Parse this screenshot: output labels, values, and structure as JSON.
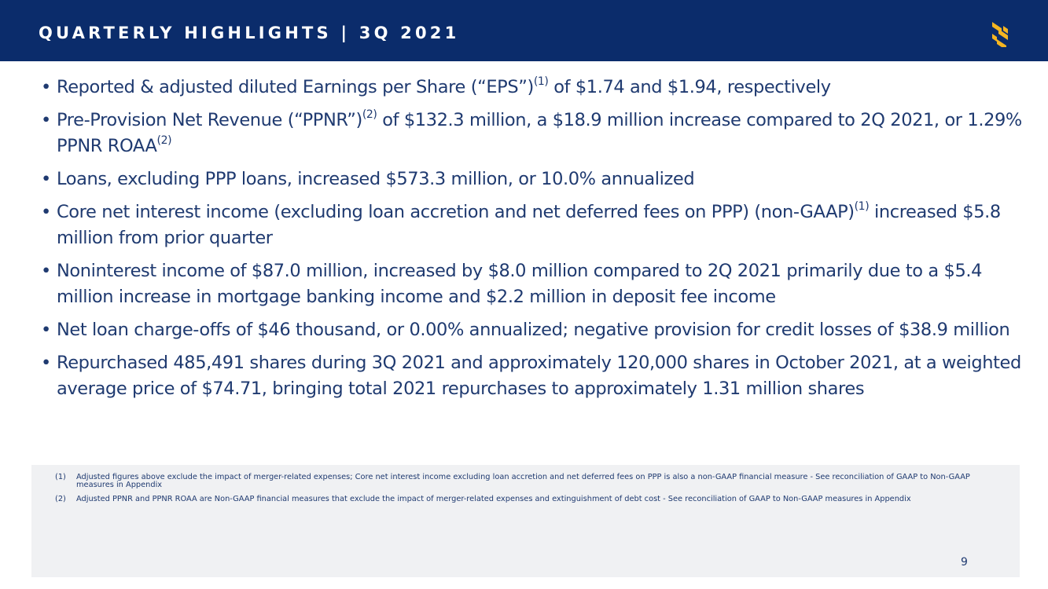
{
  "header": {
    "title": "QUARTERLY HIGHLIGHTS | 3Q 2021",
    "logo_icon": "s-logo-icon",
    "background_color": "#0b2c6b",
    "logo_color": "#f5b521"
  },
  "bullets": [
    {
      "marker": "•",
      "parts": [
        {
          "text": "Reported & adjusted diluted Earnings per Share (“EPS”)"
        },
        {
          "sup": "(1)"
        },
        {
          "text": " of $1.74 and $1.94, respectively"
        }
      ]
    },
    {
      "marker": "•",
      "parts": [
        {
          "text": "Pre-Provision Net Revenue (“PPNR”)"
        },
        {
          "sup": "(2)"
        },
        {
          "text": " of $132.3 million, a $18.9 million increase compared to 2Q 2021, or 1.29% PPNR ROAA"
        },
        {
          "sup": "(2)"
        }
      ]
    },
    {
      "marker": "•",
      "parts": [
        {
          "text": "Loans, excluding PPP loans, increased $573.3 million, or 10.0% annualized"
        }
      ]
    },
    {
      "marker": "•",
      "parts": [
        {
          "text": "Core net interest income (excluding loan accretion and net deferred fees on PPP) (non-GAAP)"
        },
        {
          "sup": "(1)"
        },
        {
          "text": " increased $5.8 million from prior quarter"
        }
      ]
    },
    {
      "marker": "•",
      "parts": [
        {
          "text": "Noninterest income of $87.0 million, increased by $8.0 million compared to 2Q 2021 primarily due to a $5.4 million increase in mortgage banking income and $2.2 million in deposit fee income"
        }
      ]
    },
    {
      "marker": "•",
      "parts": [
        {
          "text": "Net loan charge-offs of $46 thousand, or 0.00% annualized; negative provision for credit losses of $38.9 million"
        }
      ]
    },
    {
      "marker": "•",
      "parts": [
        {
          "text": "Repurchased 485,491 shares during 3Q 2021 and approximately 120,000 shares in October 2021, at a weighted average price of $74.71, bringing total 2021 repurchases to approximately 1.31 million shares"
        }
      ]
    }
  ],
  "footnotes": [
    {
      "number": "(1)",
      "text": "Adjusted figures above exclude the impact of merger-related expenses; Core net interest income excluding loan accretion and net deferred fees on PPP is also a non-GAAP financial measure - See reconciliation of GAAP to Non-GAAP measures in Appendix"
    },
    {
      "number": "(2)",
      "text": "Adjusted PPNR and PPNR ROAA are Non-GAAP financial measures that exclude the impact of merger-related expenses and extinguishment of debt cost - See reconciliation of GAAP to Non-GAAP measures in Appendix"
    }
  ],
  "page_number": "9"
}
